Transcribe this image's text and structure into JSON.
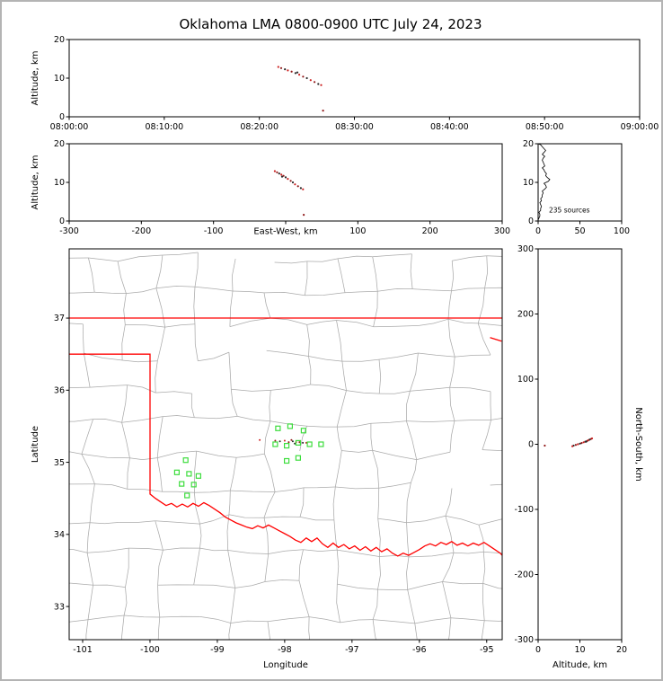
{
  "title": "Oklahoma LMA 0800-0900 UTC July 24, 2023",
  "colors": {
    "state_border": "#ff0000",
    "county_line": "#aaaaaa",
    "station": "#3ddd3d",
    "source_palette": [
      "#cc2020",
      "#8f1616",
      "#2a2a2a"
    ],
    "histogram": "#000000",
    "axis": "#000000"
  },
  "chart_data": [
    {
      "type": "scatter",
      "name": "time-altitude",
      "ylabel": "Altitude, km",
      "ylim": [
        0,
        20
      ],
      "yticks": [
        0,
        10,
        20
      ],
      "xlim_minutes": [
        0,
        60
      ],
      "xtick_minutes": [
        0,
        10,
        20,
        30,
        40,
        50,
        60
      ],
      "xtick_labels": [
        "08:00:00",
        "08:10:00",
        "08:20:00",
        "08:30:00",
        "08:40:00",
        "08:50:00",
        "09:00:00"
      ],
      "points": [
        [
          22.0,
          12.9
        ],
        [
          22.3,
          12.6
        ],
        [
          22.7,
          12.3
        ],
        [
          23.0,
          12.0
        ],
        [
          23.4,
          11.7
        ],
        [
          23.8,
          11.3
        ],
        [
          24.2,
          10.9
        ],
        [
          24.6,
          10.4
        ],
        [
          25.0,
          10.0
        ],
        [
          25.4,
          9.5
        ],
        [
          25.8,
          9.0
        ],
        [
          26.2,
          8.5
        ],
        [
          26.5,
          8.2
        ],
        [
          26.7,
          1.6
        ],
        [
          24.0,
          11.5
        ]
      ]
    },
    {
      "type": "scatter",
      "name": "east-west-altitude",
      "xlabel": "East-West, km",
      "ylabel": "Altitude, km",
      "xlim": [
        -300,
        300
      ],
      "xtick_values": [
        -300,
        -200,
        -100,
        0,
        100,
        200,
        300
      ],
      "xtick_labels": [
        "-300",
        "-200",
        "-100",
        "",
        "100",
        "200",
        "300"
      ],
      "ylim": [
        0,
        20
      ],
      "yticks": [
        0,
        10,
        20
      ],
      "points": [
        [
          -15,
          12.9
        ],
        [
          -12,
          12.6
        ],
        [
          -9,
          12.3
        ],
        [
          -6,
          12.0
        ],
        [
          -3,
          11.7
        ],
        [
          0,
          11.3
        ],
        [
          3,
          10.9
        ],
        [
          7,
          10.4
        ],
        [
          10,
          10.0
        ],
        [
          13,
          9.5
        ],
        [
          17,
          9.0
        ],
        [
          21,
          8.5
        ],
        [
          24,
          8.2
        ],
        [
          25,
          1.6
        ],
        [
          -5,
          11.5
        ]
      ]
    },
    {
      "type": "line",
      "name": "altitude-histogram",
      "annotation": "235 sources",
      "xlim": [
        0,
        100
      ],
      "xticks": [
        0,
        50,
        100
      ],
      "ylim": [
        0,
        20
      ],
      "yticks": [
        0,
        10,
        20
      ],
      "bin_km": 0.5,
      "counts": [
        0,
        1,
        2,
        2,
        1,
        3,
        3,
        4,
        3,
        2,
        4,
        3,
        5,
        5,
        6,
        5,
        8,
        10,
        9,
        7,
        12,
        14,
        11,
        9,
        10,
        8,
        7,
        5,
        8,
        7,
        6,
        5,
        6,
        8,
        5,
        7,
        9,
        7,
        5,
        3
      ]
    },
    {
      "type": "map",
      "name": "plan-view",
      "xlabel": "Longitude",
      "ylabel": "Latitude",
      "xlim": [
        -101.2,
        -94.77
      ],
      "xticks": [
        -101,
        -100,
        -99,
        -98,
        -97,
        -96,
        -95
      ],
      "ylim": [
        32.54,
        37.96
      ],
      "yticks": [
        33,
        34,
        35,
        36,
        37
      ],
      "stations": [
        [
          -98.1,
          35.47
        ],
        [
          -97.92,
          35.5
        ],
        [
          -97.72,
          35.44
        ],
        [
          -98.14,
          35.25
        ],
        [
          -97.97,
          35.23
        ],
        [
          -97.8,
          35.27
        ],
        [
          -97.63,
          35.25
        ],
        [
          -97.46,
          35.25
        ],
        [
          -97.97,
          35.02
        ],
        [
          -97.8,
          35.06
        ],
        [
          -99.47,
          35.03
        ],
        [
          -99.6,
          34.86
        ],
        [
          -99.42,
          34.84
        ],
        [
          -99.28,
          34.81
        ],
        [
          -99.53,
          34.7
        ],
        [
          -99.35,
          34.69
        ],
        [
          -99.45,
          34.54
        ]
      ],
      "sources": [
        [
          -98.37,
          35.31
        ],
        [
          -98.14,
          35.3
        ],
        [
          -98.07,
          35.29
        ],
        [
          -98.0,
          35.3
        ],
        [
          -97.94,
          35.28
        ],
        [
          -97.88,
          35.29
        ],
        [
          -97.83,
          35.28
        ],
        [
          -97.78,
          35.28
        ],
        [
          -97.73,
          35.27
        ],
        [
          -97.68,
          35.27
        ],
        [
          -97.9,
          35.31
        ],
        [
          -97.85,
          35.26
        ]
      ],
      "state_border": [
        [
          [
            -101.2,
            37.0
          ],
          [
            -94.77,
            37.0
          ]
        ],
        [
          [
            -94.95,
            36.73
          ],
          [
            -94.78,
            36.68
          ]
        ],
        [
          [
            -101.2,
            36.5
          ],
          [
            -100.0,
            36.5
          ],
          [
            -100.0,
            34.56
          ],
          [
            -99.92,
            34.5
          ],
          [
            -99.84,
            34.45
          ],
          [
            -99.76,
            34.4
          ],
          [
            -99.68,
            34.43
          ],
          [
            -99.6,
            34.38
          ],
          [
            -99.52,
            34.42
          ],
          [
            -99.44,
            34.38
          ],
          [
            -99.36,
            34.43
          ],
          [
            -99.28,
            34.39
          ],
          [
            -99.2,
            34.44
          ],
          [
            -99.12,
            34.4
          ],
          [
            -99.04,
            34.35
          ],
          [
            -98.96,
            34.3
          ],
          [
            -98.88,
            34.24
          ],
          [
            -98.8,
            34.2
          ],
          [
            -98.72,
            34.16
          ],
          [
            -98.64,
            34.13
          ],
          [
            -98.56,
            34.1
          ],
          [
            -98.48,
            34.08
          ],
          [
            -98.4,
            34.12
          ],
          [
            -98.32,
            34.09
          ],
          [
            -98.24,
            34.13
          ],
          [
            -98.16,
            34.09
          ],
          [
            -98.08,
            34.05
          ],
          [
            -98.0,
            34.01
          ],
          [
            -97.92,
            33.97
          ],
          [
            -97.84,
            33.92
          ],
          [
            -97.76,
            33.89
          ],
          [
            -97.68,
            33.95
          ],
          [
            -97.6,
            33.9
          ],
          [
            -97.52,
            33.95
          ],
          [
            -97.44,
            33.87
          ],
          [
            -97.36,
            33.82
          ],
          [
            -97.28,
            33.88
          ],
          [
            -97.2,
            33.82
          ],
          [
            -97.12,
            33.86
          ],
          [
            -97.04,
            33.8
          ],
          [
            -96.96,
            33.84
          ],
          [
            -96.88,
            33.78
          ],
          [
            -96.8,
            33.83
          ],
          [
            -96.72,
            33.77
          ],
          [
            -96.64,
            33.82
          ],
          [
            -96.56,
            33.76
          ],
          [
            -96.48,
            33.8
          ],
          [
            -96.4,
            33.74
          ],
          [
            -96.32,
            33.7
          ],
          [
            -96.24,
            33.74
          ],
          [
            -96.16,
            33.71
          ],
          [
            -96.08,
            33.75
          ],
          [
            -96.0,
            33.79
          ],
          [
            -95.92,
            33.84
          ],
          [
            -95.84,
            33.87
          ],
          [
            -95.76,
            33.84
          ],
          [
            -95.68,
            33.89
          ],
          [
            -95.6,
            33.86
          ],
          [
            -95.52,
            33.9
          ],
          [
            -95.44,
            33.85
          ],
          [
            -95.36,
            33.88
          ],
          [
            -95.28,
            33.84
          ],
          [
            -95.2,
            33.88
          ],
          [
            -95.12,
            33.85
          ],
          [
            -95.04,
            33.89
          ],
          [
            -94.96,
            33.84
          ],
          [
            -94.88,
            33.79
          ],
          [
            -94.8,
            33.74
          ],
          [
            -94.77,
            33.71
          ]
        ]
      ]
    },
    {
      "type": "scatter",
      "name": "north-south-altitude",
      "xlabel": "Altitude, km",
      "ylabel": "North-South, km",
      "xlim": [
        0,
        20
      ],
      "xticks": [
        0,
        10,
        20
      ],
      "ylim": [
        -300,
        300
      ],
      "yticks": [
        -300,
        -200,
        -100,
        0,
        100,
        200,
        300
      ],
      "points": [
        [
          12.9,
          9
        ],
        [
          12.6,
          8
        ],
        [
          12.3,
          7
        ],
        [
          12.0,
          6
        ],
        [
          11.7,
          5
        ],
        [
          11.3,
          4
        ],
        [
          10.9,
          3
        ],
        [
          10.4,
          2
        ],
        [
          10.0,
          1
        ],
        [
          9.5,
          0
        ],
        [
          9.0,
          -1
        ],
        [
          8.5,
          -2
        ],
        [
          8.2,
          -3
        ],
        [
          1.6,
          -2
        ],
        [
          11.5,
          4
        ]
      ]
    }
  ]
}
